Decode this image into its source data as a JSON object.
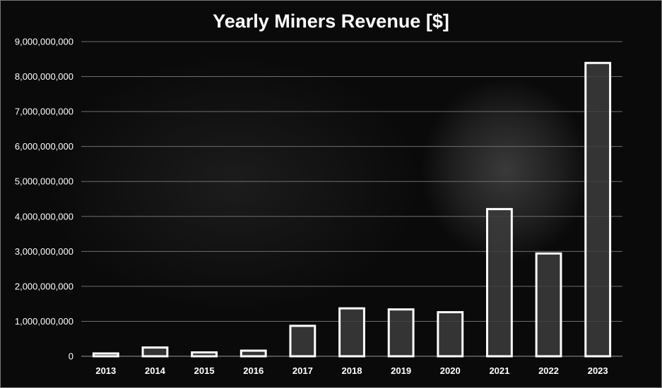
{
  "chart_data": {
    "type": "bar",
    "title": "Yearly Miners Revenue [$]",
    "xlabel": "",
    "ylabel": "",
    "categories": [
      "2013",
      "2014",
      "2015",
      "2016",
      "2017",
      "2018",
      "2019",
      "2020",
      "2021",
      "2022",
      "2023"
    ],
    "values": [
      80000000,
      250000000,
      110000000,
      160000000,
      870000000,
      1370000000,
      1340000000,
      1260000000,
      4210000000,
      2940000000,
      8390000000
    ],
    "ylim": [
      0,
      9000000000
    ],
    "yticks": [
      "0",
      "1,000,000,000",
      "2,000,000,000",
      "3,000,000,000",
      "4,000,000,000",
      "5,000,000,000",
      "6,000,000,000",
      "7,000,000,000",
      "8,000,000,000",
      "9,000,000,000"
    ],
    "grid": true,
    "legend": "none",
    "colors": {
      "bar_fill": "#3c3c3c",
      "bar_stroke": "#ffffff",
      "grid": "#6e6e6e",
      "text": "#ffffff"
    }
  }
}
